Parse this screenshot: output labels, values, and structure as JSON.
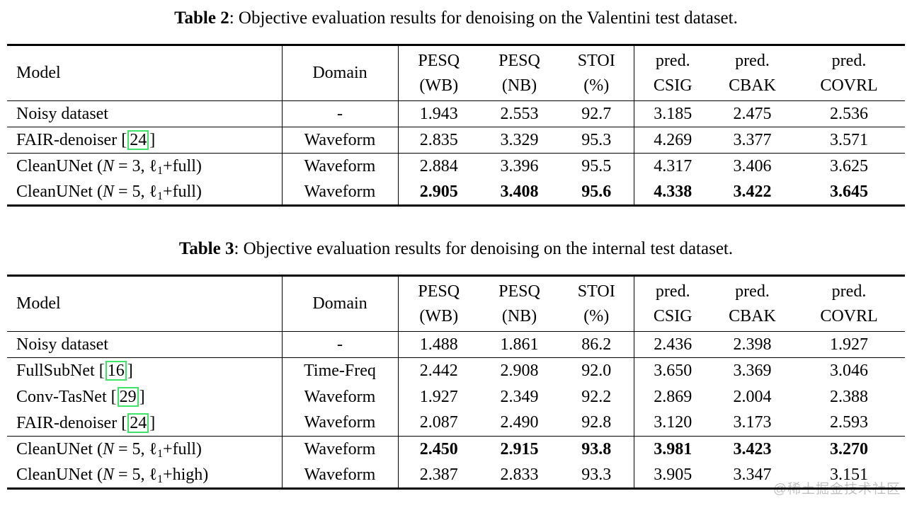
{
  "page": {
    "watermark": "@稀土掘金技术社区"
  },
  "colors": {
    "citation_box_green": "#3ee468",
    "text": "#000000",
    "background": "#ffffff"
  },
  "tables": [
    {
      "caption": {
        "label": "Table 2",
        "text": ": Objective evaluation results for denoising on the Valentini test dataset."
      },
      "columns": {
        "model": "Model",
        "domain": "Domain",
        "metrics": [
          {
            "line1": "PESQ",
            "line2": "(WB)"
          },
          {
            "line1": "PESQ",
            "line2": "(NB)"
          },
          {
            "line1": "STOI",
            "line2": "(%)"
          },
          {
            "line1": "pred.",
            "line2": "CSIG"
          },
          {
            "line1": "pred.",
            "line2": "CBAK"
          },
          {
            "line1": "pred.",
            "line2": "COVRL"
          }
        ]
      },
      "rows": [
        {
          "model": [
            {
              "t": "text",
              "v": "Noisy dataset"
            }
          ],
          "domain": "-",
          "values": [
            "1.943",
            "2.553",
            "92.7",
            "3.185",
            "2.475",
            "2.536"
          ],
          "bold": false,
          "rule_below": true
        },
        {
          "model": [
            {
              "t": "text",
              "v": "FAIR-denoiser "
            },
            {
              "t": "cite",
              "v": "24"
            }
          ],
          "domain": "Waveform",
          "values": [
            "2.835",
            "3.329",
            "95.3",
            "4.269",
            "3.377",
            "3.571"
          ],
          "bold": false,
          "rule_below": true
        },
        {
          "model": [
            {
              "t": "text",
              "v": "CleanUNet ("
            },
            {
              "t": "var",
              "v": "N"
            },
            {
              "t": "text",
              "v": " = 3, "
            },
            {
              "t": "ell",
              "v": "1"
            },
            {
              "t": "text",
              "v": "+full)"
            }
          ],
          "domain": "Waveform",
          "values": [
            "2.884",
            "3.396",
            "95.5",
            "4.317",
            "3.406",
            "3.625"
          ],
          "bold": false,
          "rule_below": false
        },
        {
          "model": [
            {
              "t": "text",
              "v": "CleanUNet ("
            },
            {
              "t": "var",
              "v": "N"
            },
            {
              "t": "text",
              "v": " = 5, "
            },
            {
              "t": "ell",
              "v": "1"
            },
            {
              "t": "text",
              "v": "+full)"
            }
          ],
          "domain": "Waveform",
          "values": [
            "2.905",
            "3.408",
            "95.6",
            "4.338",
            "3.422",
            "3.645"
          ],
          "bold": true,
          "rule_below": false
        }
      ]
    },
    {
      "caption": {
        "label": "Table 3",
        "text": ": Objective evaluation results for denoising on the internal test dataset."
      },
      "columns": {
        "model": "Model",
        "domain": "Domain",
        "metrics": [
          {
            "line1": "PESQ",
            "line2": "(WB)"
          },
          {
            "line1": "PESQ",
            "line2": "(NB)"
          },
          {
            "line1": "STOI",
            "line2": "(%)"
          },
          {
            "line1": "pred.",
            "line2": "CSIG"
          },
          {
            "line1": "pred.",
            "line2": "CBAK"
          },
          {
            "line1": "pred.",
            "line2": "COVRL"
          }
        ]
      },
      "rows": [
        {
          "model": [
            {
              "t": "text",
              "v": "Noisy dataset"
            }
          ],
          "domain": "-",
          "values": [
            "1.488",
            "1.861",
            "86.2",
            "2.436",
            "2.398",
            "1.927"
          ],
          "bold": false,
          "rule_below": true
        },
        {
          "model": [
            {
              "t": "text",
              "v": "FullSubNet "
            },
            {
              "t": "cite",
              "v": "16"
            }
          ],
          "domain": "Time-Freq",
          "values": [
            "2.442",
            "2.908",
            "92.0",
            "3.650",
            "3.369",
            "3.046"
          ],
          "bold": false,
          "rule_below": false
        },
        {
          "model": [
            {
              "t": "text",
              "v": "Conv-TasNet "
            },
            {
              "t": "cite",
              "v": "29"
            }
          ],
          "domain": "Waveform",
          "values": [
            "1.927",
            "2.349",
            "92.2",
            "2.869",
            "2.004",
            "2.388"
          ],
          "bold": false,
          "rule_below": false
        },
        {
          "model": [
            {
              "t": "text",
              "v": "FAIR-denoiser "
            },
            {
              "t": "cite",
              "v": "24"
            }
          ],
          "domain": "Waveform",
          "values": [
            "2.087",
            "2.490",
            "92.8",
            "3.120",
            "3.173",
            "2.593"
          ],
          "bold": false,
          "rule_below": true
        },
        {
          "model": [
            {
              "t": "text",
              "v": "CleanUNet ("
            },
            {
              "t": "var",
              "v": "N"
            },
            {
              "t": "text",
              "v": " = 5, "
            },
            {
              "t": "ell",
              "v": "1"
            },
            {
              "t": "text",
              "v": "+full)"
            }
          ],
          "domain": "Waveform",
          "values": [
            "2.450",
            "2.915",
            "93.8",
            "3.981",
            "3.423",
            "3.270"
          ],
          "bold": true,
          "rule_below": false
        },
        {
          "model": [
            {
              "t": "text",
              "v": "CleanUNet ("
            },
            {
              "t": "var",
              "v": "N"
            },
            {
              "t": "text",
              "v": " = 5, "
            },
            {
              "t": "ell",
              "v": "1"
            },
            {
              "t": "text",
              "v": "+high)"
            }
          ],
          "domain": "Waveform",
          "values": [
            "2.387",
            "2.833",
            "93.3",
            "3.905",
            "3.347",
            "3.151"
          ],
          "bold": false,
          "rule_below": false
        }
      ]
    }
  ]
}
